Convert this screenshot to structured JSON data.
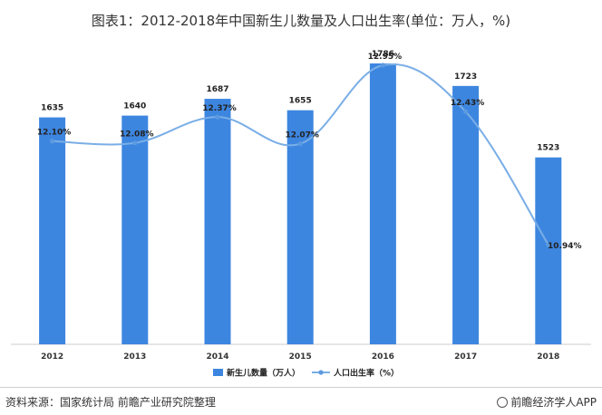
{
  "chart_data": {
    "type": "bar",
    "title": "图表1：2012-2018年中国新生儿数量及人口出生率(单位：万人，%)",
    "categories": [
      "2012",
      "2013",
      "2014",
      "2015",
      "2016",
      "2017",
      "2018"
    ],
    "series": [
      {
        "name": "新生儿数量（万人）",
        "type": "bar",
        "color": "#3d86e0",
        "values": [
          1635,
          1640,
          1687,
          1655,
          1786,
          1723,
          1523
        ],
        "labels": [
          "1635",
          "1640",
          "1687",
          "1655",
          "1786",
          "1723",
          "1523"
        ]
      },
      {
        "name": "人口出生率（%）",
        "type": "line",
        "color": "#7aaee6",
        "values": [
          12.1,
          12.08,
          12.37,
          12.07,
          12.95,
          12.43,
          10.94
        ],
        "labels": [
          "12.10%",
          "12.08%",
          "12.37%",
          "12.07%",
          "12.95%",
          "12.43%",
          "10.94%"
        ]
      }
    ],
    "legend_position": "bottom",
    "grid": false
  },
  "footer": {
    "source": "资料来源：国家统计局 前瞻产业研究院整理",
    "brand": "前瞻经济学人APP"
  }
}
